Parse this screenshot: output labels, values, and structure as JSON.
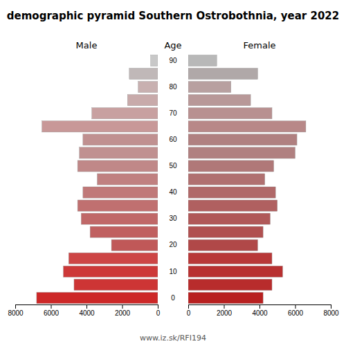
{
  "chart_data": {
    "type": "bar",
    "orientation": "horizontal",
    "title": "demographic pyramid Southern Ostrobothnia, year 2022",
    "ylabel": "Age",
    "annotations": [
      "www.iz.sk/RFI194"
    ],
    "categories": [
      "0",
      null,
      "10",
      null,
      "20",
      null,
      "30",
      null,
      "40",
      null,
      "50",
      null,
      "60",
      null,
      "70",
      null,
      "80",
      null,
      "90"
    ],
    "series": [
      {
        "name": "Male",
        "values": [
          6800,
          4700,
          5300,
          5000,
          2600,
          3800,
          4300,
          4500,
          4200,
          3400,
          4500,
          4400,
          4200,
          6500,
          3700,
          1700,
          1100,
          1600,
          400
        ],
        "colors": [
          "#cd2828",
          "#cd3535",
          "#cd3838",
          "#cd4545",
          "#c05858",
          "#c06060",
          "#c06868",
          "#c07070",
          "#c07878",
          "#c08080",
          "#c08888",
          "#c09090",
          "#c09090",
          "#c89898",
          "#c8a0a0",
          "#c8aaaa",
          "#c8b0b0",
          "#c0b8b8",
          "#c8c8c8"
        ]
      },
      {
        "name": "Female",
        "values": [
          4200,
          4700,
          5300,
          4700,
          3900,
          4200,
          4600,
          5000,
          4900,
          4300,
          4800,
          6000,
          6100,
          6600,
          4700,
          3500,
          2400,
          3900,
          1600
        ],
        "colors": [
          "#b82020",
          "#b82c2c",
          "#b83030",
          "#b83838",
          "#b04848",
          "#b05050",
          "#b05858",
          "#b06060",
          "#b06868",
          "#b07070",
          "#b07878",
          "#b08080",
          "#b08080",
          "#b88888",
          "#b89090",
          "#b89898",
          "#b8a0a0",
          "#b0a8a8",
          "#b8b8b8"
        ]
      }
    ],
    "xlim": [
      0,
      8000
    ],
    "xticks": [
      0,
      2000,
      4000,
      6000,
      8000
    ],
    "grid": false
  }
}
